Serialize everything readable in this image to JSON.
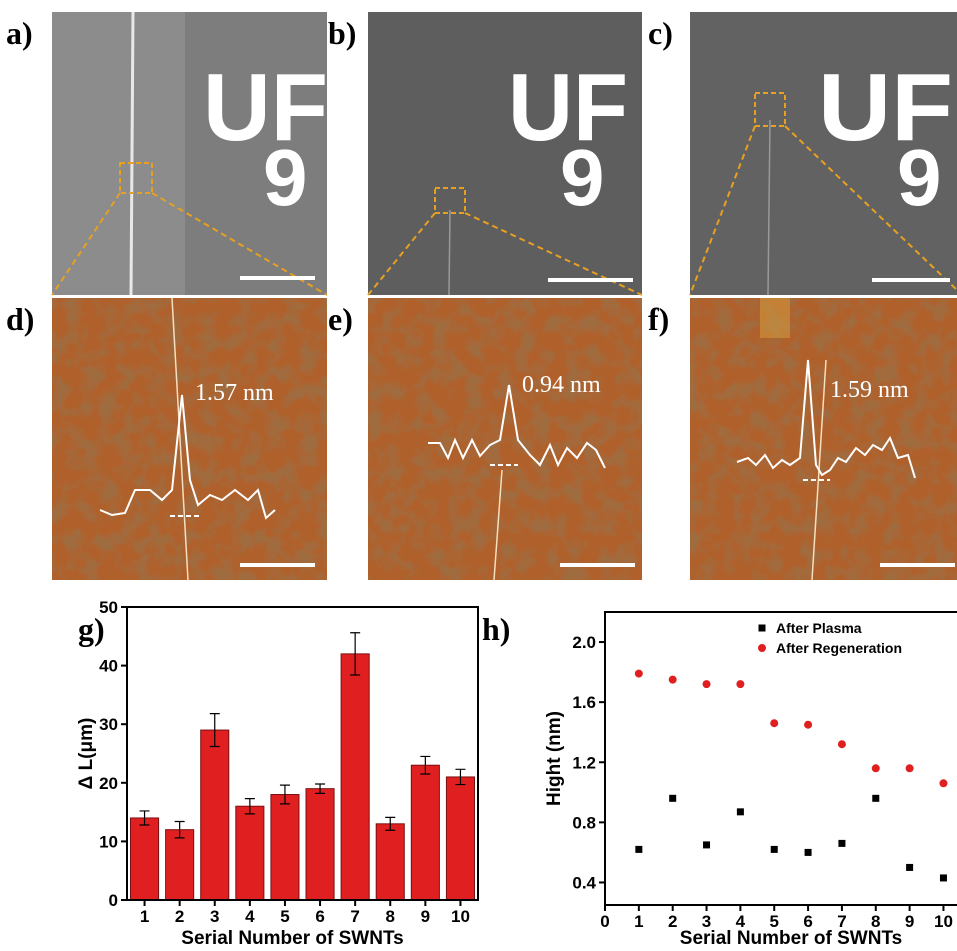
{
  "panel_labels": [
    "a)",
    "b)",
    "c)",
    "d)",
    "e)",
    "f)",
    "g)",
    "h)"
  ],
  "sem_marker": [
    "UF",
    "9"
  ],
  "afm_heights": [
    "1.57 nm",
    "0.94 nm",
    "1.59 nm"
  ],
  "chart_data": [
    {
      "type": "bar",
      "categories": [
        "1",
        "2",
        "3",
        "4",
        "5",
        "6",
        "7",
        "8",
        "9",
        "10"
      ],
      "values": [
        14,
        12,
        29,
        16,
        18,
        19,
        42,
        13,
        23,
        21
      ],
      "errors": [
        1.2,
        1.4,
        2.8,
        1.3,
        1.6,
        0.8,
        3.6,
        1.1,
        1.5,
        1.3
      ],
      "color": "#e02020",
      "ylim": [
        0,
        50
      ],
      "yticks": [
        0,
        10,
        20,
        30,
        40,
        50
      ],
      "y_label": "Δ L(μm)",
      "x_label": "Serial  Number of SWNTs"
    },
    {
      "type": "scatter",
      "x": [
        1,
        2,
        3,
        4,
        5,
        6,
        7,
        8,
        9,
        10
      ],
      "series": [
        {
          "name": "After Plasma",
          "color": "#000000",
          "marker": "square",
          "values": [
            0.62,
            0.96,
            0.65,
            0.87,
            0.62,
            0.6,
            0.66,
            0.96,
            0.5,
            0.43
          ]
        },
        {
          "name": "After Regeneration",
          "color": "#e02020",
          "marker": "circle",
          "values": [
            1.79,
            1.75,
            1.72,
            1.72,
            1.46,
            1.45,
            1.32,
            1.16,
            1.16,
            1.06
          ]
        }
      ],
      "xlim": [
        0,
        10.4
      ],
      "xticks": [
        0,
        1,
        2,
        3,
        4,
        5,
        6,
        7,
        8,
        9,
        10
      ],
      "ylim": [
        0.25,
        2.2
      ],
      "yticks": [
        0.4,
        0.8,
        1.2,
        1.6,
        {
          "value": 2,
          "label": "2.0"
        }
      ],
      "y_label": "Hight (nm)",
      "x_label": "Serial  Number of SWNTs",
      "legend": "top-right"
    }
  ]
}
